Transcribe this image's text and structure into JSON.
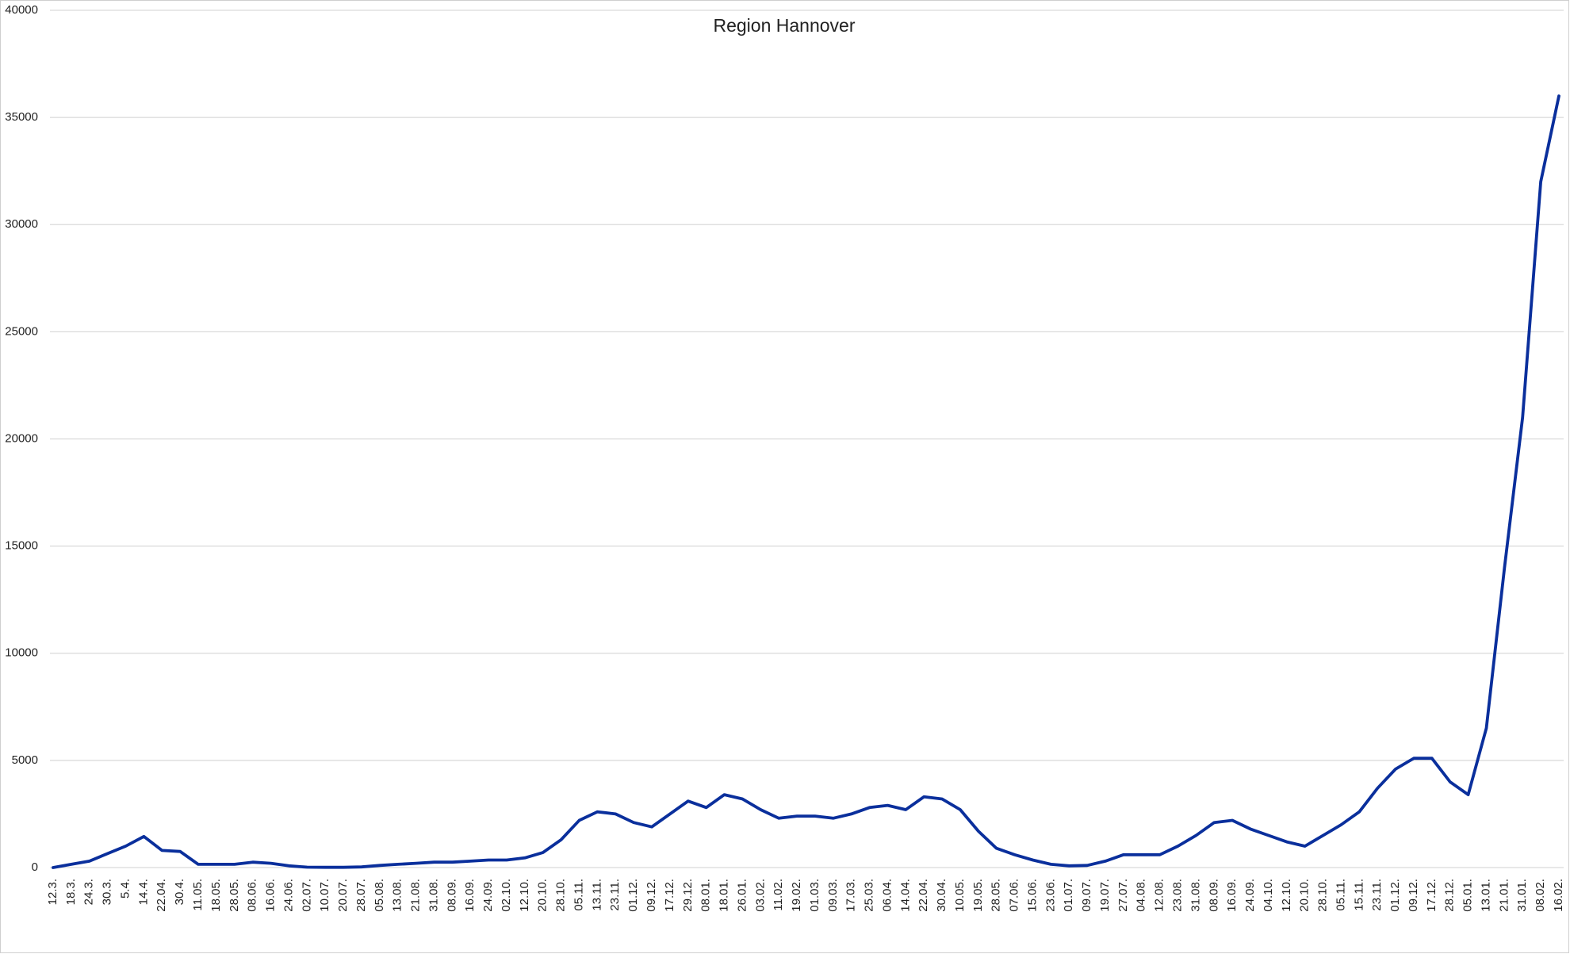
{
  "chart_data": {
    "type": "line",
    "title": "Region Hannover",
    "categories": [
      "12.3.",
      "18.3.",
      "24.3.",
      "30.3.",
      "5.4.",
      "14.4.",
      "22.04.",
      "30.4.",
      "11.05.",
      "18.05.",
      "28.05.",
      "08.06.",
      "16.06.",
      "24.06.",
      "02.07.",
      "10.07.",
      "20.07.",
      "28.07.",
      "05.08.",
      "13.08.",
      "21.08.",
      "31.08.",
      "08.09.",
      "16.09.",
      "24.09.",
      "02.10.",
      "12.10.",
      "20.10.",
      "28.10.",
      "05.11.",
      "13.11.",
      "23.11.",
      "01.12.",
      "09.12.",
      "17.12.",
      "29.12.",
      "08.01.",
      "18.01.",
      "26.01.",
      "03.02.",
      "11.02.",
      "19.02.",
      "01.03.",
      "09.03.",
      "17.03.",
      "25.03.",
      "06.04.",
      "14.04.",
      "22.04.",
      "30.04.",
      "10.05.",
      "19.05.",
      "28.05.",
      "07.06.",
      "15.06.",
      "23.06.",
      "01.07.",
      "09.07.",
      "19.07.",
      "27.07.",
      "04.08.",
      "12.08.",
      "23.08.",
      "31.08.",
      "08.09.",
      "16.09.",
      "24.09.",
      "04.10.",
      "12.10.",
      "20.10.",
      "28.10.",
      "05.11.",
      "15.11.",
      "23.11.",
      "01.12.",
      "09.12.",
      "17.12.",
      "28.12.",
      "05.01.",
      "13.01.",
      "21.01.",
      "31.01.",
      "08.02.",
      "16.02."
    ],
    "series": [
      {
        "color": "#0a2f9c",
        "values": [
          0,
          150,
          300,
          650,
          1000,
          1450,
          800,
          750,
          150,
          150,
          150,
          250,
          200,
          80,
          20,
          10,
          10,
          30,
          100,
          150,
          200,
          250,
          250,
          300,
          350,
          350,
          450,
          700,
          1300,
          2200,
          2600,
          2500,
          2100,
          1900,
          2500,
          3100,
          2800,
          3400,
          3200,
          2700,
          2300,
          2400,
          2400,
          2300,
          2500,
          2800,
          2900,
          2700,
          3300,
          3200,
          2700,
          1700,
          900,
          600,
          350,
          150,
          80,
          100,
          300,
          600,
          600,
          600,
          1000,
          1500,
          2100,
          2200,
          1800,
          1500,
          1200,
          1000,
          1500,
          2000,
          2600,
          3700,
          4600,
          5100,
          5100,
          4000,
          3400,
          6500,
          14000,
          21000,
          32000,
          36000
        ]
      }
    ],
    "ylim": [
      0,
      40000
    ],
    "yticks": [
      0,
      5000,
      10000,
      15000,
      20000,
      25000,
      30000,
      35000,
      40000
    ],
    "grid": true
  }
}
